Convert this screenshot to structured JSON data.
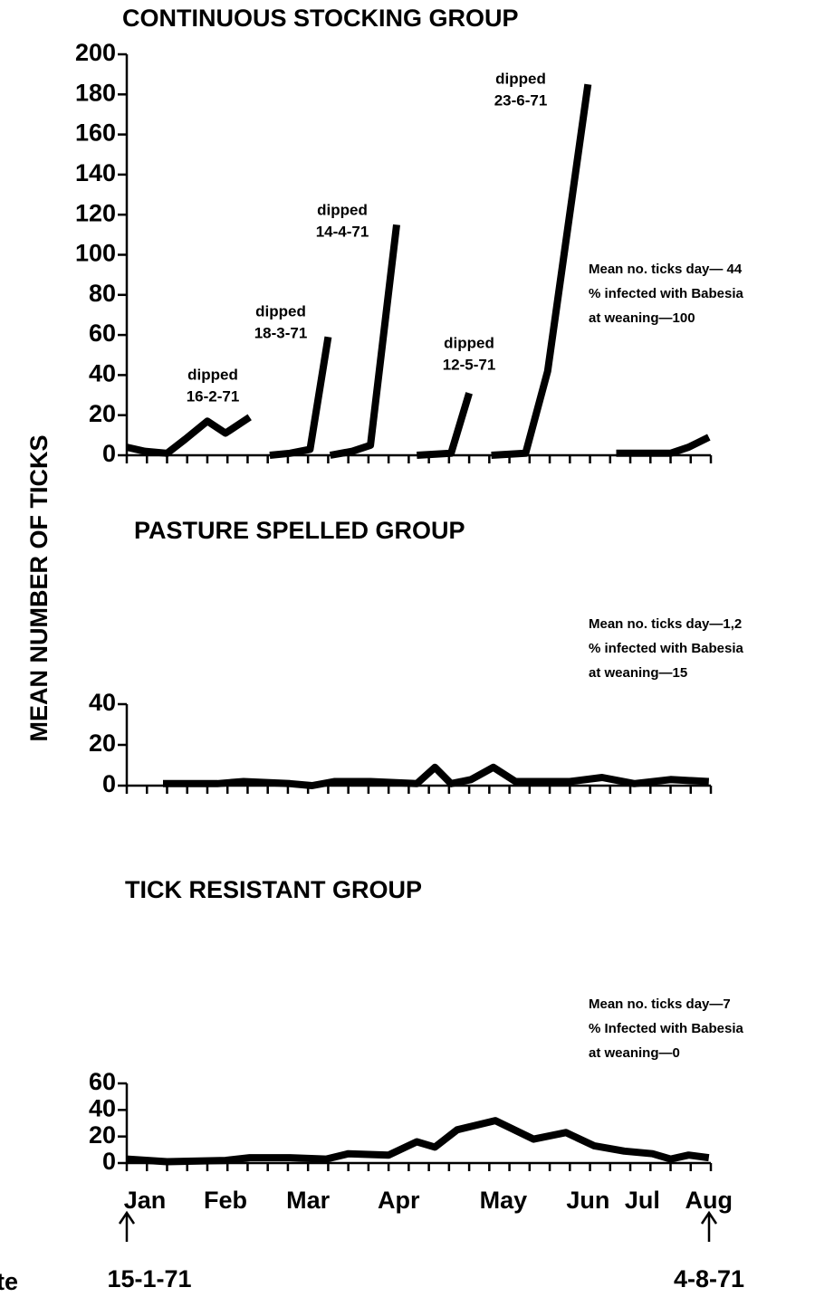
{
  "ylabel": "MEAN NUMBER OF TICKS",
  "start_label": "15-1-71",
  "end_label": "4-8-71",
  "footer_left": "te",
  "chart_data": [
    {
      "type": "line",
      "title": "CONTINUOUS STOCKING GROUP",
      "x": [
        0,
        0.9,
        2.0,
        2.9,
        4.0,
        4.9,
        6.1,
        6.5,
        7.1,
        8.1,
        9.1,
        10.0,
        10.05,
        10.1,
        11.2,
        12.1,
        13.4,
        14.0,
        14.4,
        16.1,
        17.0,
        17.5,
        18.1,
        19.8,
        20.9,
        22.9,
        23.5,
        24.3,
        26.1,
        27.0,
        27.9,
        28.9
      ],
      "series": [
        {
          "color": "#000000",
          "values": [
            4,
            2,
            1,
            8,
            17,
            11,
            19,
            null,
            0,
            1,
            3,
            59,
            null,
            0,
            2,
            5,
            115,
            null,
            0,
            1,
            31,
            null,
            0,
            1,
            42,
            185,
            null,
            1,
            1,
            1,
            4,
            9
          ]
        }
      ],
      "xlim": [
        0,
        29
      ],
      "ylim": [
        0,
        200
      ],
      "yticks": [
        0,
        20,
        40,
        60,
        80,
        100,
        120,
        140,
        160,
        180,
        200
      ],
      "minor_xticks": [
        0,
        1,
        2,
        3,
        4,
        5,
        6,
        7,
        8,
        9,
        10,
        11,
        12,
        13,
        14,
        15,
        16,
        17,
        18,
        19,
        20,
        21,
        22,
        23,
        24,
        25,
        26,
        27,
        28,
        29
      ],
      "annotations": [
        [
          "dipped",
          "16-2-71"
        ],
        [
          "dipped",
          "18-3-71"
        ],
        [
          "dipped",
          "14-4-71"
        ],
        [
          "dipped",
          "12-5-71"
        ],
        [
          "dipped",
          "23-6-71"
        ]
      ],
      "notes": [
        "Mean no. ticks  day— 44",
        "% infected with Babesia",
        "at weaning—100"
      ]
    },
    {
      "type": "line",
      "title": "PASTURE SPELLED GROUP",
      "x": [
        1.8,
        4.5,
        5.8,
        8.1,
        9.2,
        10.3,
        12.1,
        14.4,
        15.3,
        16.1,
        17.1,
        18.2,
        19.3,
        22.0,
        23.6,
        25.2,
        27.0,
        28.9
      ],
      "series": [
        {
          "color": "#000000",
          "values": [
            1,
            1,
            2,
            1,
            0,
            2,
            2,
            1,
            9,
            1,
            3,
            9,
            2,
            2,
            4,
            1,
            3,
            2
          ]
        }
      ],
      "xlim": [
        0,
        29
      ],
      "ylim": [
        0,
        40
      ],
      "yticks": [
        0,
        20,
        40
      ],
      "minor_xticks": [
        0,
        1,
        2,
        3,
        4,
        5,
        6,
        7,
        8,
        9,
        10,
        11,
        12,
        13,
        14,
        15,
        16,
        17,
        18,
        19,
        20,
        21,
        22,
        23,
        24,
        25,
        26,
        27,
        28,
        29
      ],
      "notes": [
        "Mean no. ticks  day—1,2",
        "% infected with  Babesia",
        "at weaning—15"
      ]
    },
    {
      "type": "line",
      "title": "TICK RESISTANT GROUP",
      "x": [
        0,
        2.0,
        4.9,
        6.1,
        8.1,
        9.9,
        11.0,
        13.0,
        14.4,
        15.3,
        16.4,
        18.3,
        20.2,
        21.8,
        23.2,
        24.7,
        26.1,
        27.0,
        27.9,
        28.9
      ],
      "series": [
        {
          "color": "#000000",
          "values": [
            3,
            1,
            2,
            4,
            4,
            3,
            7,
            6,
            16,
            12,
            25,
            32,
            18,
            23,
            13,
            9,
            7,
            3,
            6,
            4
          ]
        }
      ],
      "xlim": [
        0,
        29
      ],
      "ylim": [
        0,
        60
      ],
      "yticks": [
        0,
        20,
        40,
        60
      ],
      "minor_xticks": [
        0,
        1,
        2,
        3,
        4,
        5,
        6,
        7,
        8,
        9,
        10,
        11,
        12,
        13,
        14,
        15,
        16,
        17,
        18,
        19,
        20,
        21,
        22,
        23,
        24,
        25,
        26,
        27,
        28,
        29
      ],
      "xticks": [
        {
          "value": 0.9,
          "label": "Jan"
        },
        {
          "value": 4.9,
          "label": "Feb"
        },
        {
          "value": 9.0,
          "label": "Mar"
        },
        {
          "value": 13.5,
          "label": "Apr"
        },
        {
          "value": 18.7,
          "label": "May"
        },
        {
          "value": 22.9,
          "label": "Jun"
        },
        {
          "value": 25.6,
          "label": "Jul"
        },
        {
          "value": 28.9,
          "label": "Aug"
        }
      ],
      "notes": [
        "Mean no. ticks  day—7",
        "% Infected with Babesia",
        "at weaning—0"
      ]
    }
  ]
}
